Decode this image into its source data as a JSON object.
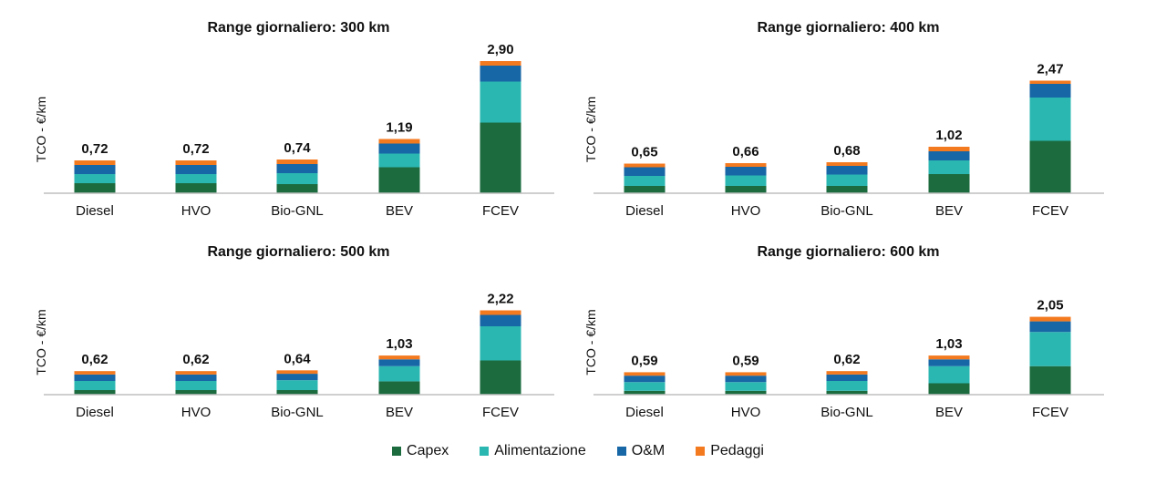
{
  "colors": {
    "Capex": "#1b6b3e",
    "Alimentazione": "#2bb7b1",
    "O&M": "#1766a5",
    "Pedaggi": "#f47a20",
    "axis": "#bfbfbf"
  },
  "legend": [
    "Capex",
    "Alimentazione",
    "O&M",
    "Pedaggi"
  ],
  "chart_data": [
    {
      "type": "bar",
      "stacked": true,
      "title": "Range giornaliero: 300 km",
      "ylabel": "TCO - €/km",
      "categories": [
        "Diesel",
        "HVO",
        "Bio-GNL",
        "BEV",
        "FCEV"
      ],
      "totals_labels": [
        "0,72",
        "0,72",
        "0,74",
        "1,19",
        "2,90"
      ],
      "series": [
        {
          "name": "Capex",
          "values": [
            0.22,
            0.22,
            0.2,
            0.57,
            1.55
          ]
        },
        {
          "name": "Alimentazione",
          "values": [
            0.2,
            0.2,
            0.24,
            0.3,
            0.9
          ]
        },
        {
          "name": "O&M",
          "values": [
            0.2,
            0.2,
            0.2,
            0.22,
            0.35
          ]
        },
        {
          "name": "Pedaggi",
          "values": [
            0.1,
            0.1,
            0.1,
            0.1,
            0.1
          ]
        }
      ],
      "ylim": [
        0,
        3.0
      ]
    },
    {
      "type": "bar",
      "stacked": true,
      "title": "Range giornaliero: 400 km",
      "ylabel": "TCO - €/km",
      "categories": [
        "Diesel",
        "HVO",
        "Bio-GNL",
        "BEV",
        "FCEV"
      ],
      "totals_labels": [
        "0,65",
        "0,66",
        "0,68",
        "1,02",
        "2,47"
      ],
      "series": [
        {
          "name": "Capex",
          "values": [
            0.16,
            0.16,
            0.16,
            0.42,
            1.15
          ]
        },
        {
          "name": "Alimentazione",
          "values": [
            0.22,
            0.23,
            0.25,
            0.3,
            0.95
          ]
        },
        {
          "name": "O&M",
          "values": [
            0.19,
            0.19,
            0.19,
            0.2,
            0.3
          ]
        },
        {
          "name": "Pedaggi",
          "values": [
            0.08,
            0.08,
            0.08,
            0.1,
            0.07
          ]
        }
      ],
      "ylim": [
        0,
        3.0
      ]
    },
    {
      "type": "bar",
      "stacked": true,
      "title": "Range giornaliero: 500 km",
      "ylabel": "TCO - €/km",
      "categories": [
        "Diesel",
        "HVO",
        "Bio-GNL",
        "BEV",
        "FCEV"
      ],
      "totals_labels": [
        "0,62",
        "0,62",
        "0,64",
        "1,03",
        "2,22"
      ],
      "series": [
        {
          "name": "Capex",
          "values": [
            0.12,
            0.12,
            0.12,
            0.35,
            0.9
          ]
        },
        {
          "name": "Alimentazione",
          "values": [
            0.24,
            0.24,
            0.26,
            0.4,
            0.9
          ]
        },
        {
          "name": "O&M",
          "values": [
            0.17,
            0.17,
            0.17,
            0.18,
            0.3
          ]
        },
        {
          "name": "Pedaggi",
          "values": [
            0.09,
            0.09,
            0.09,
            0.1,
            0.12
          ]
        }
      ],
      "ylim": [
        0,
        3.0
      ]
    },
    {
      "type": "bar",
      "stacked": true,
      "title": "Range giornaliero: 600 km",
      "ylabel": "TCO - €/km",
      "categories": [
        "Diesel",
        "HVO",
        "Bio-GNL",
        "BEV",
        "FCEV"
      ],
      "totals_labels": [
        "0,59",
        "0,59",
        "0,62",
        "1,03",
        "2,05"
      ],
      "series": [
        {
          "name": "Capex",
          "values": [
            0.1,
            0.1,
            0.1,
            0.3,
            0.75
          ]
        },
        {
          "name": "Alimentazione",
          "values": [
            0.23,
            0.23,
            0.26,
            0.45,
            0.9
          ]
        },
        {
          "name": "O&M",
          "values": [
            0.17,
            0.17,
            0.17,
            0.18,
            0.28
          ]
        },
        {
          "name": "Pedaggi",
          "values": [
            0.09,
            0.09,
            0.09,
            0.1,
            0.12
          ]
        }
      ],
      "ylim": [
        0,
        3.0
      ]
    }
  ]
}
